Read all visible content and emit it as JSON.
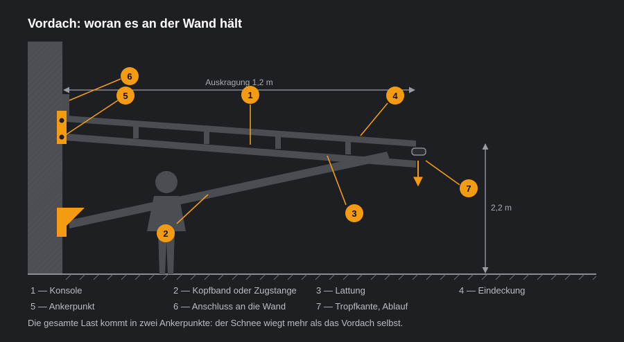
{
  "title": "Vordach: woran es an der Wand hält",
  "dimensions": {
    "overhang_label": "Auskragung 1,2 m",
    "height_label": "2,2 m"
  },
  "callouts": [
    "1",
    "2",
    "3",
    "4",
    "5",
    "6",
    "7"
  ],
  "legend": [
    {
      "number": "1",
      "text": "1 — Konsole"
    },
    {
      "number": "2",
      "text": "2 — Kopfband oder Zugstange"
    },
    {
      "number": "3",
      "text": "3 — Lattung"
    },
    {
      "number": "4",
      "text": "4 — Eindeckung"
    },
    {
      "number": "5",
      "text": "5 — Ankerpunkt"
    },
    {
      "number": "6",
      "text": "6 — Anschluss an die Wand"
    },
    {
      "number": "7",
      "text": "7 — Tropfkante, Ablauf"
    }
  ],
  "footnote": "Die gesamte Last kommt in zwei Ankerpunkte: der Schnee wiegt mehr als das Vordach selbst.",
  "colors": {
    "accent": "#f39c12",
    "beam": "#4a4d52",
    "wall": "#4b4e52",
    "background": "#1d1f22"
  }
}
